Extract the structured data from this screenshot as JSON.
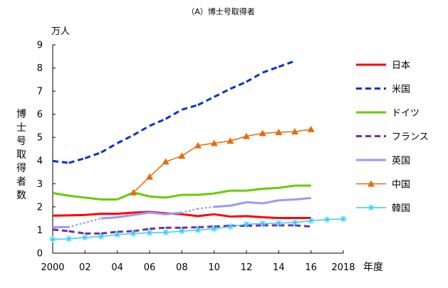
{
  "chart_data": {
    "type": "line",
    "title": "（A）博士号取得者",
    "unit_label": "万人",
    "ylabel": "博士号取得者数",
    "xlabel": "年度",
    "ylim": [
      0,
      9
    ],
    "xlim": [
      2000,
      2018
    ],
    "yticks": [
      0,
      1,
      2,
      3,
      4,
      5,
      6,
      7,
      8,
      9
    ],
    "xticks": [
      {
        "x": 2000,
        "label": "2000"
      },
      {
        "x": 2002,
        "label": "02"
      },
      {
        "x": 2004,
        "label": "04"
      },
      {
        "x": 2006,
        "label": "06"
      },
      {
        "x": 2008,
        "label": "08"
      },
      {
        "x": 2010,
        "label": "10"
      },
      {
        "x": 2012,
        "label": "12"
      },
      {
        "x": 2014,
        "label": "14"
      },
      {
        "x": 2016,
        "label": "16"
      },
      {
        "x": 2018,
        "label": "2018"
      }
    ],
    "grid": false,
    "legend_position": "right",
    "series": [
      {
        "name": "日本",
        "color": "#ff0000",
        "style": "solid",
        "width": 3,
        "marker": "none",
        "x": [
          2000,
          2001,
          2002,
          2003,
          2004,
          2005,
          2006,
          2007,
          2008,
          2009,
          2010,
          2011,
          2012,
          2013,
          2014,
          2015,
          2016
        ],
        "y": [
          1.62,
          1.63,
          1.65,
          1.7,
          1.7,
          1.75,
          1.78,
          1.72,
          1.68,
          1.6,
          1.68,
          1.58,
          1.6,
          1.55,
          1.52,
          1.52,
          1.52
        ]
      },
      {
        "name": "米国",
        "color": "#0033cc",
        "style": "dash",
        "width": 3,
        "marker": "none",
        "x": [
          2000,
          2001,
          2002,
          2003,
          2004,
          2005,
          2006,
          2007,
          2008,
          2009,
          2010,
          2011,
          2012,
          2013,
          2014,
          2015
        ],
        "y": [
          3.98,
          3.9,
          4.1,
          4.35,
          4.75,
          5.1,
          5.5,
          5.8,
          6.2,
          6.4,
          6.75,
          7.1,
          7.4,
          7.8,
          8.05,
          8.3
        ]
      },
      {
        "name": "ドイツ",
        "color": "#66cc00",
        "style": "solid",
        "width": 3,
        "marker": "none",
        "x": [
          2000,
          2001,
          2002,
          2003,
          2004,
          2005,
          2006,
          2007,
          2008,
          2009,
          2010,
          2011,
          2012,
          2013,
          2014,
          2015,
          2016
        ],
        "y": [
          2.6,
          2.48,
          2.4,
          2.32,
          2.32,
          2.62,
          2.45,
          2.4,
          2.52,
          2.52,
          2.58,
          2.7,
          2.7,
          2.78,
          2.82,
          2.92,
          2.92
        ]
      },
      {
        "name": "フランス",
        "color": "#7030a0",
        "style": "dash",
        "width": 3,
        "marker": "none",
        "x": [
          2000,
          2001,
          2002,
          2003,
          2004,
          2005,
          2006,
          2007,
          2008,
          2009,
          2010,
          2011,
          2012,
          2013,
          2014,
          2015,
          2016
        ],
        "y": [
          1.02,
          0.95,
          0.85,
          0.85,
          0.92,
          0.95,
          1.05,
          1.1,
          1.1,
          1.12,
          1.15,
          1.18,
          1.18,
          1.2,
          1.2,
          1.2,
          1.15
        ]
      },
      {
        "name": "英国",
        "color": "#9999ff",
        "style": "solid",
        "width": 3,
        "marker": "none",
        "x": [
          2000,
          2001,
          2003,
          2004,
          2005,
          2006,
          2007,
          2008,
          2009,
          2010,
          2011,
          2012,
          2013,
          2014,
          2015,
          2016
        ],
        "y": [
          1.12,
          1.13,
          1.5,
          1.55,
          1.65,
          1.75,
          1.68,
          1.75,
          1.92,
          2.0,
          2.05,
          2.2,
          2.15,
          2.28,
          2.32,
          2.38
        ],
        "dotted_segments": [
          [
            1,
            2
          ],
          [
            7,
            9
          ]
        ]
      },
      {
        "name": "中国",
        "color": "#e46c0a",
        "style": "solid",
        "width": 1.5,
        "marker": "triangle",
        "x": [
          2005,
          2006,
          2007,
          2008,
          2009,
          2010,
          2011,
          2012,
          2013,
          2014,
          2015,
          2016
        ],
        "y": [
          2.62,
          3.3,
          3.95,
          4.2,
          4.65,
          4.75,
          4.85,
          5.05,
          5.18,
          5.22,
          5.25,
          5.35
        ]
      },
      {
        "name": "韓国",
        "color": "#33ccff",
        "style": "solid",
        "width": 1.5,
        "marker": "star",
        "x": [
          2000,
          2001,
          2002,
          2003,
          2004,
          2005,
          2006,
          2007,
          2008,
          2009,
          2010,
          2011,
          2012,
          2013,
          2014,
          2015,
          2016,
          2017,
          2018
        ],
        "y": [
          0.6,
          0.62,
          0.68,
          0.72,
          0.8,
          0.85,
          0.88,
          0.9,
          0.95,
          1.0,
          1.05,
          1.15,
          1.25,
          1.28,
          1.3,
          1.32,
          1.4,
          1.45,
          1.48
        ]
      }
    ]
  }
}
